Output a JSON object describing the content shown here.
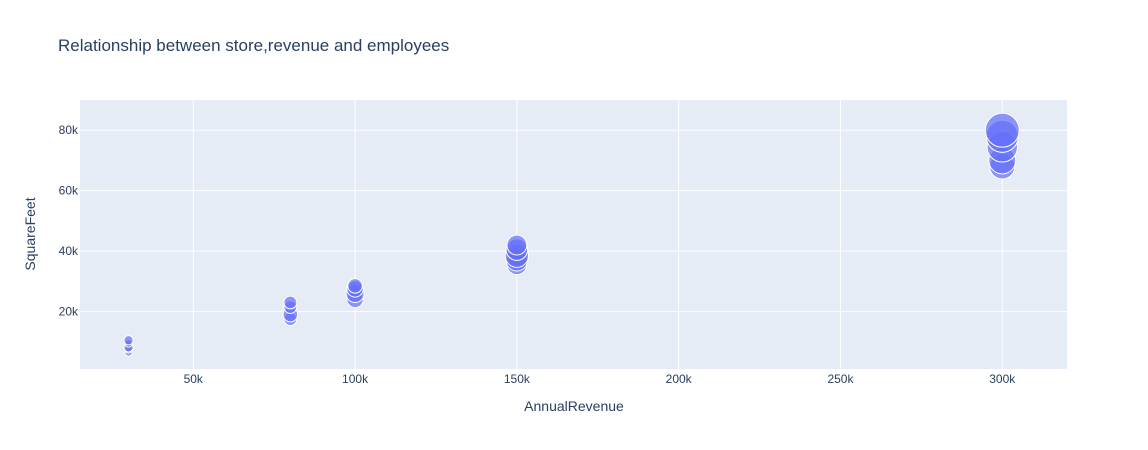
{
  "chart_data": {
    "type": "scatter",
    "title": "Relationship between store,revenue and employees",
    "xlabel": "AnnualRevenue",
    "ylabel": "SquareFeet",
    "xlim": [
      15000,
      320000
    ],
    "ylim": [
      1000,
      90000
    ],
    "x_ticks": [
      {
        "value": 50000,
        "label": "50k"
      },
      {
        "value": 100000,
        "label": "100k"
      },
      {
        "value": 150000,
        "label": "150k"
      },
      {
        "value": 200000,
        "label": "200k"
      },
      {
        "value": 250000,
        "label": "250k"
      },
      {
        "value": 300000,
        "label": "300k"
      }
    ],
    "y_ticks": [
      {
        "value": 20000,
        "label": "20k"
      },
      {
        "value": 40000,
        "label": "40k"
      },
      {
        "value": 60000,
        "label": "60k"
      },
      {
        "value": 80000,
        "label": "80k"
      }
    ],
    "grid": true,
    "marker_color": "#636efa",
    "plot_bgcolor": "#e5ecf6",
    "size_encoding": "employees",
    "points": [
      {
        "x": 30000,
        "y": 6500,
        "size": 2
      },
      {
        "x": 30000,
        "y": 7500,
        "size": 2
      },
      {
        "x": 30000,
        "y": 8200,
        "size": 3
      },
      {
        "x": 30000,
        "y": 9500,
        "size": 2
      },
      {
        "x": 30000,
        "y": 10500,
        "size": 3
      },
      {
        "x": 80000,
        "y": 17500,
        "size": 5
      },
      {
        "x": 80000,
        "y": 19000,
        "size": 6
      },
      {
        "x": 80000,
        "y": 21500,
        "size": 5
      },
      {
        "x": 80000,
        "y": 23000,
        "size": 5
      },
      {
        "x": 100000,
        "y": 24000,
        "size": 7
      },
      {
        "x": 100000,
        "y": 26000,
        "size": 8
      },
      {
        "x": 100000,
        "y": 27500,
        "size": 7
      },
      {
        "x": 100000,
        "y": 28500,
        "size": 6
      },
      {
        "x": 150000,
        "y": 35500,
        "size": 9
      },
      {
        "x": 150000,
        "y": 37000,
        "size": 10
      },
      {
        "x": 150000,
        "y": 38500,
        "size": 11
      },
      {
        "x": 150000,
        "y": 40500,
        "size": 10
      },
      {
        "x": 150000,
        "y": 42000,
        "size": 9
      },
      {
        "x": 300000,
        "y": 68000,
        "size": 12
      },
      {
        "x": 300000,
        "y": 70000,
        "size": 13
      },
      {
        "x": 300000,
        "y": 74500,
        "size": 15
      },
      {
        "x": 300000,
        "y": 78000,
        "size": 16
      },
      {
        "x": 300000,
        "y": 80000,
        "size": 17
      }
    ]
  }
}
